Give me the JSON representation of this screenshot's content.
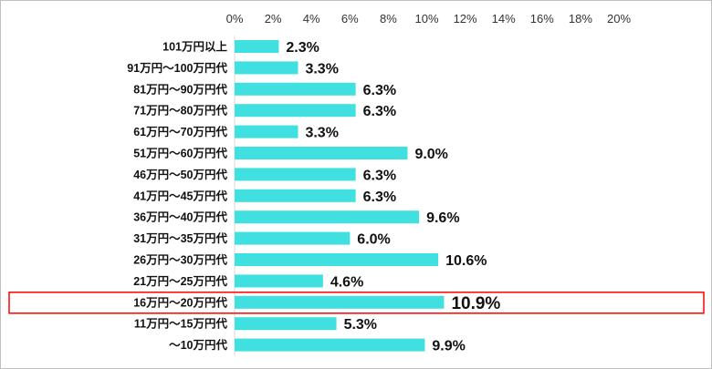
{
  "chart_data": {
    "type": "bar",
    "orientation": "horizontal",
    "x_axis_position": "top",
    "xlim": [
      0,
      20
    ],
    "x_ticks": [
      "0%",
      "2%",
      "4%",
      "6%",
      "8%",
      "10%",
      "12%",
      "14%",
      "16%",
      "18%",
      "20%"
    ],
    "categories": [
      "101万円以上",
      "91万円～100万円代",
      "81万円～90万円代",
      "71万円～80万円代",
      "61万円～70万円代",
      "51万円～60万円代",
      "46万円～50万円代",
      "41万円～45万円代",
      "36万円～40万円代",
      "31万円～35万円代",
      "26万円～30万円代",
      "21万円～25万円代",
      "16万円～20万円代",
      "11万円～15万円代",
      "～10万円代"
    ],
    "values": [
      2.3,
      3.3,
      6.3,
      6.3,
      3.3,
      9.0,
      6.3,
      6.3,
      9.6,
      6.0,
      10.6,
      4.6,
      10.9,
      5.3,
      9.9
    ],
    "data_labels": [
      "2.3%",
      "3.3%",
      "6.3%",
      "6.3%",
      "3.3%",
      "9.0%",
      "6.3%",
      "6.3%",
      "9.6%",
      "6.0%",
      "10.6%",
      "4.6%",
      "10.9%",
      "5.3%",
      "9.9%"
    ],
    "highlighted_category": "16万円～20万円代",
    "grid": false,
    "legend": "none"
  },
  "colors": {
    "bar": "#40e0e0",
    "highlight_border": "#ff0000",
    "frame_border": "#bfbfbf"
  }
}
